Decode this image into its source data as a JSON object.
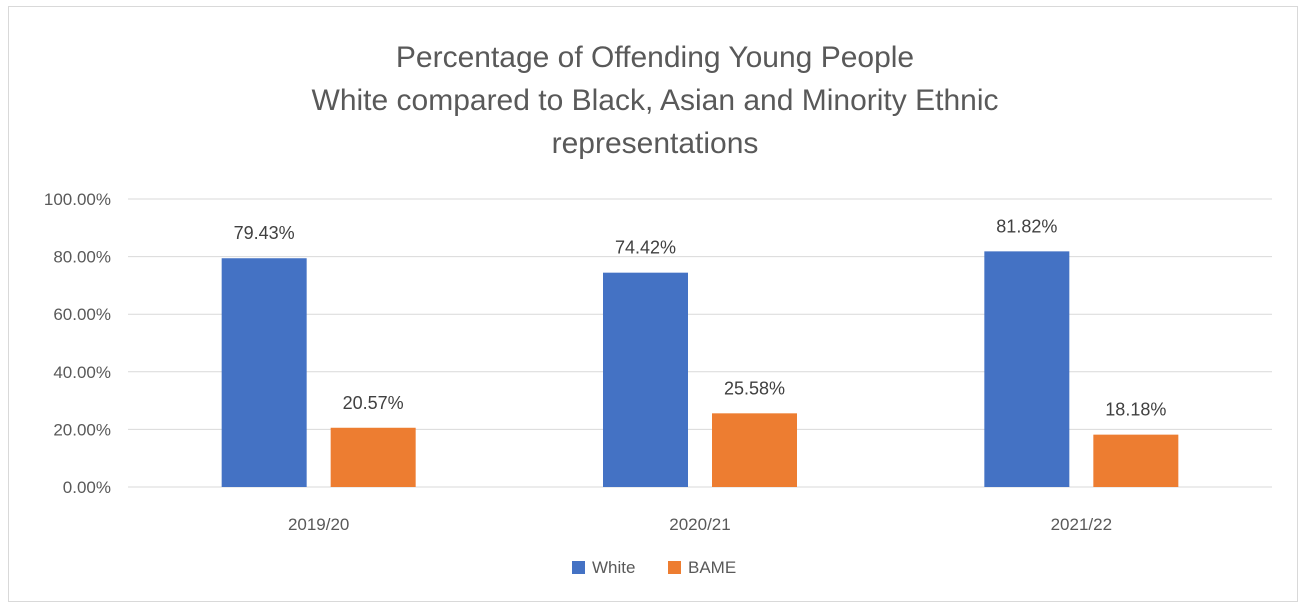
{
  "chart_data": {
    "type": "bar",
    "title_lines": [
      "Percentage of Offending Young People",
      "White compared to Black, Asian and Minority Ethnic",
      "representations"
    ],
    "categories": [
      "2019/20",
      "2020/21",
      "2021/22"
    ],
    "series": [
      {
        "name": "White",
        "color": "#4472C4",
        "values": [
          79.43,
          74.42,
          81.82
        ],
        "labels": [
          "79.43%",
          "74.42%",
          "81.82%"
        ]
      },
      {
        "name": "BAME",
        "color": "#ED7D31",
        "values": [
          20.57,
          25.58,
          18.18
        ],
        "labels": [
          "20.57%",
          "25.58%",
          "18.18%"
        ]
      }
    ],
    "ylim": [
      0,
      100
    ],
    "yticks": [
      0,
      20,
      40,
      60,
      80,
      100
    ],
    "ytick_labels": [
      "0.00%",
      "20.00%",
      "40.00%",
      "60.00%",
      "80.00%",
      "100.00%"
    ],
    "grid": true,
    "legend_position": "bottom"
  }
}
